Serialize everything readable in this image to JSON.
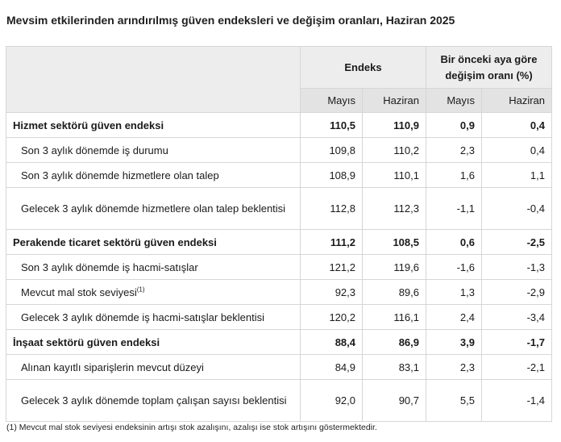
{
  "title": "Mevsim etkilerinden arındırılmış güven endeksleri ve değişim oranları, Haziran 2025",
  "header": {
    "group1": "Endeks",
    "group2": "Bir önceki aya göre değişim oranı (%)",
    "sub": [
      "Mayıs",
      "Haziran",
      "Mayıs",
      "Haziran"
    ]
  },
  "rows": [
    {
      "label": "Hizmet sektörü güven endeksi",
      "values": [
        "110,5",
        "110,9",
        "0,9",
        "0,4"
      ]
    },
    {
      "label": "Son 3 aylık dönemde iş durumu",
      "values": [
        "109,8",
        "110,2",
        "2,3",
        "0,4"
      ]
    },
    {
      "label": "Son 3 aylık dönemde hizmetlere olan talep",
      "values": [
        "108,9",
        "110,1",
        "1,6",
        "1,1"
      ]
    },
    {
      "label": "Gelecek 3 aylık dönemde hizmetlere olan talep beklentisi",
      "values": [
        "112,8",
        "112,3",
        "-1,1",
        "-0,4"
      ]
    },
    {
      "label": "Perakende ticaret sektörü güven endeksi",
      "values": [
        "111,2",
        "108,5",
        "0,6",
        "-2,5"
      ]
    },
    {
      "label": "Son 3 aylık dönemde iş hacmi-satışlar",
      "values": [
        "121,2",
        "119,6",
        "-1,6",
        "-1,3"
      ]
    },
    {
      "label": "Mevcut mal stok seviyesi",
      "sup": "(1)",
      "values": [
        "92,3",
        "89,6",
        "1,3",
        "-2,9"
      ]
    },
    {
      "label": "Gelecek 3 aylık dönemde iş hacmi-satışlar beklentisi",
      "values": [
        "120,2",
        "116,1",
        "2,4",
        "-3,4"
      ]
    },
    {
      "label": "İnşaat sektörü güven endeksi",
      "values": [
        "88,4",
        "86,9",
        "3,9",
        "-1,7"
      ]
    },
    {
      "label": "Alınan kayıtlı siparişlerin mevcut düzeyi",
      "values": [
        "84,9",
        "83,1",
        "2,3",
        "-2,1"
      ]
    },
    {
      "label": "Gelecek 3 aylık dönemde toplam çalışan sayısı beklentisi",
      "values": [
        "92,0",
        "90,7",
        "5,5",
        "-1,4"
      ]
    }
  ],
  "footnote": "(1) Mevcut mal stok seviyesi endeksinin artışı stok azalışını, azalışı ise stok artışını göstermektedir."
}
